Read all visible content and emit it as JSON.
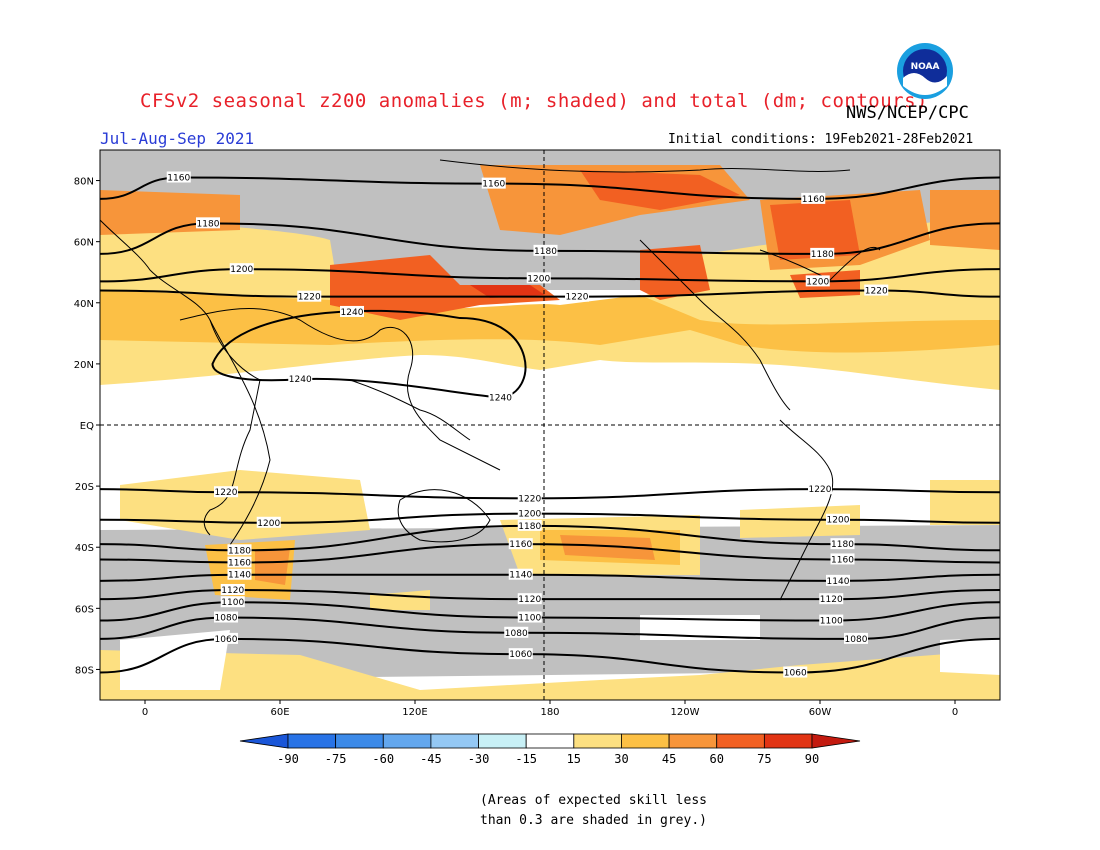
{
  "header": {
    "title": "CFSv2 seasonal z200 anomalies (m; shaded) and total (dm; contours)",
    "agency": "NWS/NCEP/CPC",
    "season": "Jul-Aug-Sep 2021",
    "initial_conditions": "Initial conditions: 19Feb2021-28Feb2021",
    "logo_text": "NOAA"
  },
  "map": {
    "lat_ticks": [
      "80N",
      "60N",
      "40N",
      "20N",
      "EQ",
      "20S",
      "40S",
      "60S",
      "80S"
    ],
    "lon_ticks": [
      "0",
      "60E",
      "120E",
      "180",
      "120W",
      "60W",
      "0"
    ],
    "contour_labels": [
      {
        "text": "1160",
        "lon": 15,
        "lat": 81
      },
      {
        "text": "1160",
        "lon": 155,
        "lat": 79
      },
      {
        "text": "1160",
        "lon": 297,
        "lat": 74
      },
      {
        "text": "1180",
        "lon": 28,
        "lat": 66
      },
      {
        "text": "1180",
        "lon": 178,
        "lat": 57
      },
      {
        "text": "1180",
        "lon": 301,
        "lat": 56
      },
      {
        "text": "1200",
        "lon": 43,
        "lat": 51
      },
      {
        "text": "1200",
        "lon": 175,
        "lat": 48
      },
      {
        "text": "1200",
        "lon": 299,
        "lat": 47
      },
      {
        "text": "1220",
        "lon": 73,
        "lat": 42
      },
      {
        "text": "1220",
        "lon": 192,
        "lat": 42
      },
      {
        "text": "1220",
        "lon": 325,
        "lat": 44
      },
      {
        "text": "1240",
        "lon": 92,
        "lat": 37
      },
      {
        "text": "1240",
        "lon": 69,
        "lat": 15
      },
      {
        "text": "1240",
        "lon": 158,
        "lat": 9
      },
      {
        "text": "1220",
        "lon": 36,
        "lat": -22
      },
      {
        "text": "1220",
        "lon": 171,
        "lat": -24
      },
      {
        "text": "1220",
        "lon": 300,
        "lat": -21
      },
      {
        "text": "1200",
        "lon": 55,
        "lat": -32
      },
      {
        "text": "1200",
        "lon": 171,
        "lat": -29
      },
      {
        "text": "1200",
        "lon": 308,
        "lat": -31
      },
      {
        "text": "1180",
        "lon": 42,
        "lat": -41
      },
      {
        "text": "1180",
        "lon": 171,
        "lat": -33
      },
      {
        "text": "1180",
        "lon": 310,
        "lat": -39
      },
      {
        "text": "1160",
        "lon": 42,
        "lat": -45
      },
      {
        "text": "1160",
        "lon": 167,
        "lat": -39
      },
      {
        "text": "1160",
        "lon": 310,
        "lat": -44
      },
      {
        "text": "1140",
        "lon": 42,
        "lat": -49
      },
      {
        "text": "1140",
        "lon": 167,
        "lat": -49
      },
      {
        "text": "1140",
        "lon": 308,
        "lat": -51
      },
      {
        "text": "1120",
        "lon": 39,
        "lat": -54
      },
      {
        "text": "1120",
        "lon": 171,
        "lat": -57
      },
      {
        "text": "1120",
        "lon": 305,
        "lat": -57
      },
      {
        "text": "1100",
        "lon": 39,
        "lat": -58
      },
      {
        "text": "1100",
        "lon": 171,
        "lat": -63
      },
      {
        "text": "1100",
        "lon": 305,
        "lat": -64
      },
      {
        "text": "1080",
        "lon": 36,
        "lat": -63
      },
      {
        "text": "1080",
        "lon": 165,
        "lat": -68
      },
      {
        "text": "1080",
        "lon": 316,
        "lat": -70
      },
      {
        "text": "1060",
        "lon": 36,
        "lat": -70
      },
      {
        "text": "1060",
        "lon": 167,
        "lat": -75
      },
      {
        "text": "1060",
        "lon": 289,
        "lat": -81
      }
    ]
  },
  "colorbar": {
    "labels": [
      "-90",
      "-75",
      "-60",
      "-45",
      "-30",
      "-15",
      "15",
      "30",
      "45",
      "60",
      "75",
      "90"
    ],
    "colors": [
      "#1a56d8",
      "#2873e6",
      "#3c8ae8",
      "#63a7ee",
      "#94c8f4",
      "#c8f0f6",
      "#ffffff",
      "#fde081",
      "#fcc045",
      "#f7953a",
      "#f26022",
      "#e23414",
      "#c31a0f"
    ]
  },
  "note": {
    "line1": "(Areas of expected skill less",
    "line2": "than 0.3 are shaded in grey.)"
  },
  "colors": {
    "grey": "#c0c0c0",
    "yellow": "#fde081",
    "light_orange": "#fcc045",
    "orange": "#f7953a",
    "red_orange": "#f26022",
    "red": "#e23414"
  }
}
